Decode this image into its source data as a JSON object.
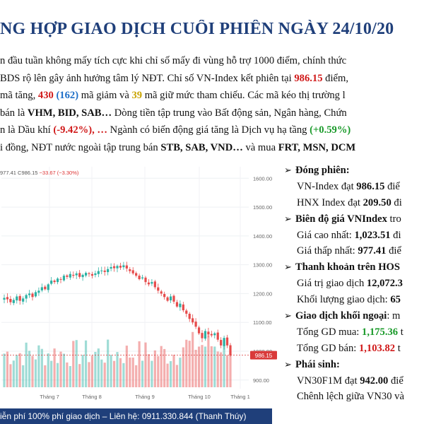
{
  "title": "NG HỢP GIAO DỊCH CUỐI PHIÊN NGÀY 24/10/20",
  "intro": {
    "line1": {
      "a": "n đầu tuần không mấy tích cực khi chỉ số mấy đi vùng hỗ trợ 1000 điểm, chính thức "
    },
    "line2": {
      "a": "BDS rộ lên gây ảnh hưởng tâm lý NĐT. Chỉ số VN-Index kết phiên tại ",
      "b": "986.15",
      "c": " điểm,"
    },
    "line3": {
      "a": "mã tăng, ",
      "b": "430",
      "c": " (162)",
      "d": " mã giảm và ",
      "e": "39",
      "f": " mã giữ mức tham chiếu. Các mã kéo thị trường l"
    },
    "line4": {
      "a": "bán là ",
      "b": "VHM, BID, SAB…",
      "c": " Dòng tiền tập trung vào Bất động sản, Ngân hàng, Chứn"
    },
    "line5": {
      "a": "n là Dầu khí ",
      "b": "(-9.42%), …",
      "c": " Ngành có biến động giá tăng là Dịch vụ hạ tầng ",
      "d": "(+0.59%)"
    },
    "line6": {
      "a": "i đồng, NĐT nước ngoài tập trung bán ",
      "b": "STB, SAB, VND…",
      "c": " và mua ",
      "d": "FRT, MSN, DCM"
    }
  },
  "chart": {
    "header": {
      "left": "977.41",
      "c_label": "C",
      "close": "986.15",
      "change": "−33.67 (−3.30%)"
    },
    "ylabels": [
      "1600.00",
      "1500.00",
      "1400.00",
      "1300.00",
      "1200.00",
      "1100.00",
      "1000.00",
      "900.00"
    ],
    "xlabels": [
      "Tháng 7",
      "Tháng 8",
      "Tháng 9",
      "Tháng 10",
      "Tháng 1"
    ],
    "price_tag": "986.15",
    "colors": {
      "up": "#2bb1a3",
      "down": "#e64b4b",
      "tag": "#d93a3a"
    }
  },
  "chart_data": {
    "type": "candlestick",
    "y_axis_ticks": [
      900,
      1000,
      1100,
      1200,
      1300,
      1400,
      1500,
      1600
    ],
    "x_axis_ticks": [
      "Tháng 7",
      "Tháng 8",
      "Tháng 9",
      "Tháng 10",
      "Tháng 1"
    ],
    "last_close": 986.15,
    "low": 977.41,
    "change": -33.67,
    "change_pct": -3.3,
    "closes": [
      1185,
      1180,
      1170,
      1178,
      1190,
      1175,
      1183,
      1195,
      1200,
      1188,
      1205,
      1210,
      1222,
      1215,
      1232,
      1245,
      1240,
      1252,
      1248,
      1262,
      1258,
      1268,
      1262,
      1270,
      1258,
      1265,
      1272,
      1268,
      1262,
      1270,
      1278,
      1280,
      1275,
      1285,
      1292,
      1288,
      1296,
      1290,
      1298,
      1287,
      1278,
      1270,
      1262,
      1250,
      1256,
      1240,
      1232,
      1240,
      1222,
      1210,
      1200,
      1188,
      1175,
      1190,
      1172,
      1155,
      1165,
      1142,
      1130,
      1112,
      1100,
      1085,
      1062,
      1045,
      1070,
      1058,
      1055,
      1062,
      1040,
      1020,
      1046,
      1020,
      986
    ]
  },
  "right": {
    "sec1": "Đóng phiên:",
    "r1": {
      "a": "VN-Index đạt ",
      "b": "986.15",
      "c": " điể"
    },
    "r2": {
      "a": "HNX Index đạt ",
      "b": "209.50",
      "c": " đi"
    },
    "sec2": {
      "a": "Biên độ giá VNIndex",
      "b": " tro"
    },
    "r3": {
      "a": "Giá cao nhất: ",
      "b": "1,023.51",
      "c": " đi"
    },
    "r4": {
      "a": "Giá thấp nhất: ",
      "b": "977.41",
      "c": " điể"
    },
    "sec3": "Thanh khoản trên HOS",
    "r5": {
      "a": "Giá trị giao dịch ",
      "b": "12,072.3"
    },
    "r6": {
      "a": "Khối lượng giao dịch: ",
      "b": "65"
    },
    "sec4": {
      "a": "Giao dịch khối ngoại",
      "b": ": m"
    },
    "r7": {
      "a": "Tổng GD mua: ",
      "b": "1,175.36",
      "c": " t"
    },
    "r8": {
      "a": "Tổng GD bán: ",
      "b": "1,103.82",
      "c": " t"
    },
    "sec5": "Phái sinh:",
    "r9": {
      "a": "VN30F1M đạt ",
      "b": "942.00",
      "c": " điể"
    },
    "r10": {
      "a": "Chênh lệch giữa VN30 và"
    }
  },
  "footer": "iễn phí 100% phí giao dịch – Liên hệ: 0911.330.844 (Thanh Thúy)"
}
